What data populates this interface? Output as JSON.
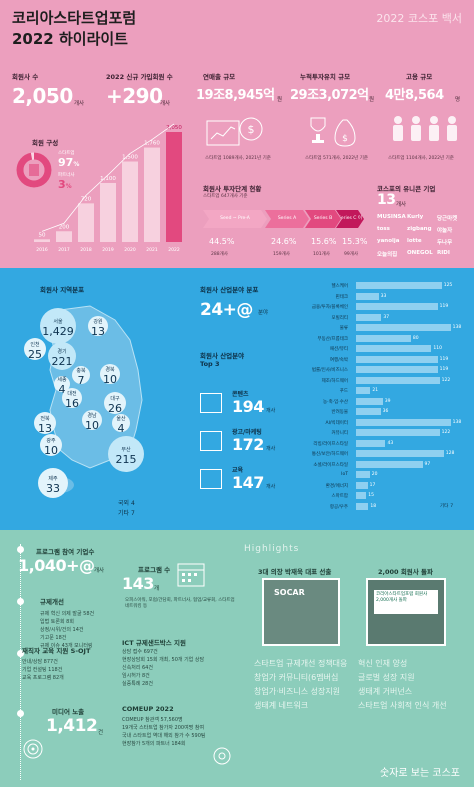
{
  "header": {
    "title_line1": "코리아스타트업포럼",
    "title_line2": "2022 하이라이트",
    "corner": "2022 코스포 백서"
  },
  "members": {
    "label": "회원사 수",
    "value": "2,050",
    "unit": "개사"
  },
  "new_members": {
    "label": "2022 신규 가입회원 수",
    "value": "+290",
    "unit": "개사"
  },
  "composition": {
    "label": "회원 구성",
    "startup_tag": "스타트업",
    "startup_pct": "97",
    "startup_unit": "%",
    "partner_tag": "파트너사",
    "partner_pct": "3",
    "partner_unit": "%"
  },
  "growth_chart": {
    "years": [
      "2016",
      "2017",
      "2018",
      "2019",
      "2020",
      "2021",
      "2022"
    ],
    "values": [
      "50",
      "200",
      "720",
      "1,100",
      "1,500",
      "1,760",
      "2,050"
    ]
  },
  "revenue": {
    "label": "연매출 규모",
    "value": "19조8,945억",
    "unit": "원",
    "note": "스타트업 1089개사, 2021년 기준"
  },
  "investment": {
    "label": "누적투자유치 규모",
    "value": "29조3,072억",
    "unit": "원",
    "note": "스타트업 571개사, 2022년 기준"
  },
  "employment": {
    "label": "고용 규모",
    "value": "4만8,564",
    "unit": "명",
    "note": "스타트업 1104개사, 2022년 기준"
  },
  "stage": {
    "label": "회원사 투자단계 현황",
    "sub": "스타트업 647개사 기준",
    "steps": [
      {
        "name": "Seed ~ Pre-A",
        "pct": "44.5%",
        "count": "288개사"
      },
      {
        "name": "Series A",
        "pct": "24.6%",
        "count": "159개사"
      },
      {
        "name": "Series B",
        "pct": "15.6%",
        "count": "101개사"
      },
      {
        "name": "Series C 이상",
        "pct": "15.3%",
        "count": "99개사"
      }
    ]
  },
  "unicorn": {
    "label": "코스포의 유니콘 기업",
    "value": "13",
    "unit": "개사",
    "logos": [
      "MUSINSA",
      "Kurly",
      "당근마켓",
      "toss",
      "zigbang",
      "야놀자",
      "yanolja",
      "lotte",
      "두나무",
      "오늘의집",
      "ONEGOL",
      "RIDI"
    ]
  },
  "region": {
    "label": "회원사 지역분포",
    "items": [
      {
        "name": "서울",
        "value": "1,429"
      },
      {
        "name": "인천",
        "value": "25"
      },
      {
        "name": "경기",
        "value": "221"
      },
      {
        "name": "강원",
        "value": "13"
      },
      {
        "name": "충북",
        "value": "7"
      },
      {
        "name": "세종",
        "value": "4"
      },
      {
        "name": "대전",
        "value": "16"
      },
      {
        "name": "경북",
        "value": "10"
      },
      {
        "name": "대구",
        "value": "26"
      },
      {
        "name": "전북",
        "value": "13"
      },
      {
        "name": "울산",
        "value": "4"
      },
      {
        "name": "광주",
        "value": "10"
      },
      {
        "name": "경남",
        "value": "10"
      },
      {
        "name": "부산",
        "value": "215"
      },
      {
        "name": "제주",
        "value": "33"
      }
    ],
    "misc1": "국외",
    "misc1_val": "4",
    "misc2": "기타",
    "misc2_val": "7"
  },
  "industry": {
    "label": "회원사 산업분야 분포",
    "value": "24+@",
    "unit": "분야",
    "top_label": "회원사 산업분야",
    "top_label2": "Top 3",
    "top": [
      {
        "name": "콘텐츠",
        "value": "194",
        "unit": "개사"
      },
      {
        "name": "광고/마케팅",
        "value": "172",
        "unit": "개사"
      },
      {
        "name": "교육",
        "value": "147",
        "unit": "개사"
      }
    ]
  },
  "industry_chart": {
    "rows": [
      {
        "name": "헬스케어",
        "value": 125
      },
      {
        "name": "핀테크",
        "value": 33
      },
      {
        "name": "금융/투자/블록체인",
        "value": 119
      },
      {
        "name": "모빌리티",
        "value": 37
      },
      {
        "name": "물류",
        "value": 138
      },
      {
        "name": "부동산/프롭테크",
        "value": 80
      },
      {
        "name": "패션/뷰티",
        "value": 110
      },
      {
        "name": "여행/숙박",
        "value": 119
      },
      {
        "name": "법률/인사/비즈니스",
        "value": 119
      },
      {
        "name": "제조/하드웨어",
        "value": 122
      },
      {
        "name": "푸드",
        "value": 21
      },
      {
        "name": "농·축·임·수산",
        "value": 39
      },
      {
        "name": "반려동물",
        "value": 36
      },
      {
        "name": "AI/빅데이터",
        "value": 138
      },
      {
        "name": "커뮤니티",
        "value": 122
      },
      {
        "name": "리빙/라이프스타일",
        "value": 43
      },
      {
        "name": "통신/보안/하드웨어",
        "value": 128
      },
      {
        "name": "소셜/라이프스타일",
        "value": 97
      },
      {
        "name": "IoT",
        "value": 20
      },
      {
        "name": "환경/에너지",
        "value": 17
      },
      {
        "name": "스마트팜",
        "value": 15
      },
      {
        "name": "항공/우주",
        "value": 18
      }
    ],
    "other_label": "기타",
    "other_value": "7"
  },
  "program": {
    "label": "프로그램 참여 기업수",
    "value": "1,040+@",
    "unit": "개사"
  },
  "regulation": {
    "label": "규제개선",
    "items": [
      "규제 혁신 의제 발굴 58건",
      "입법 토론회 8회",
      "상정/시위/건의 14건",
      "기고문 18건",
      "규제 이슈 43개 모니터링"
    ]
  },
  "training": {
    "label": "재직자 교육 지원 S-OJT",
    "items": [
      "안내/상담 877건",
      "기업 컨설팅 118건",
      "교육 프로그램 82개"
    ]
  },
  "media": {
    "label": "미디어 노출",
    "value": "1,412",
    "unit": "건"
  },
  "programs_count": {
    "label": "프로그램 수",
    "value": "143",
    "unit": "개",
    "note": "오피스아워, 포럼/간담회, 파트너사, 협업/교류회, 스타트업 네트워킹 등"
  },
  "sandbox": {
    "label": "ICT 규제샌드박스 지원",
    "items": [
      "상담 접수 697건",
      "현장상담회 15회 개최, 50개 기업 상담",
      "신속처리 64건",
      "임시허가 8건",
      "실증특례 28건"
    ]
  },
  "comeup": {
    "label": "COMEUP 2022",
    "items": [
      "COMEUP 참관객 57,560명",
      "19개국 스타트업 참가자 200여명 참여",
      "국내 스타트업 역대 해외 참가 수 590팀",
      "현장참가 5개의 파트너 184회"
    ]
  },
  "highlights": {
    "label": "Highlights",
    "photo1_caption": "3대 의장 박재욱 대표 선출",
    "photo1_logo": "SOCAR",
    "photo2_caption": "2,000 회원사 돌파",
    "photo2_sign": "코리아스타트업포럼 회원사 2,000개사 돌파",
    "keywords1": [
      "스타트업 규제개선 정책대응",
      "창업가 커뮤니티(6멤버십",
      "창업가·비즈니스 성장지원",
      "생태계 네트워크"
    ],
    "keywords2": [
      "혁신 인재 양성",
      "글로벌 성장 지원",
      "생태계 거버넌스",
      "스타트업 사회적 인식 개선"
    ]
  },
  "footer": "숫자로 보는 코스포"
}
